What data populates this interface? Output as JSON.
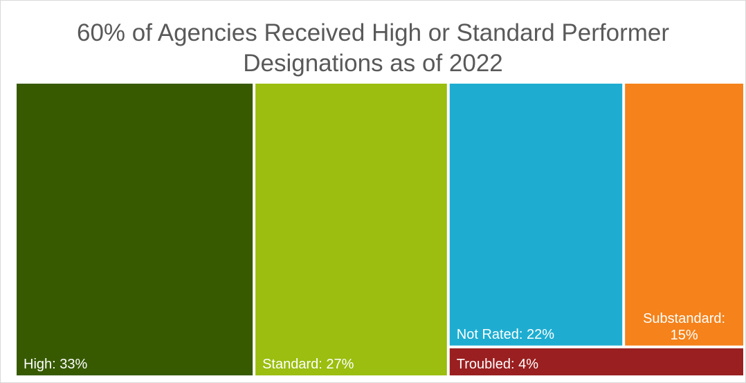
{
  "chart_data": {
    "type": "treemap",
    "title_lines": [
      "60% of Agencies Received High or Standard Performer",
      "Designations as of 2022"
    ],
    "items": [
      {
        "name": "High",
        "value": 33,
        "label": "High: 33%",
        "color": "#375a00"
      },
      {
        "name": "Standard",
        "value": 27,
        "label": "Standard: 27%",
        "color": "#9bbe10"
      },
      {
        "name": "Not Rated",
        "value": 22,
        "label": "Not Rated: 22%",
        "color": "#1eadd1"
      },
      {
        "name": "Substandard",
        "value": 15,
        "label_lines": [
          "Substandard:",
          "15%"
        ],
        "color": "#f5821a"
      },
      {
        "name": "Troubled",
        "value": 4,
        "label": "Troubled: 4%",
        "color": "#9a1f20"
      }
    ]
  }
}
